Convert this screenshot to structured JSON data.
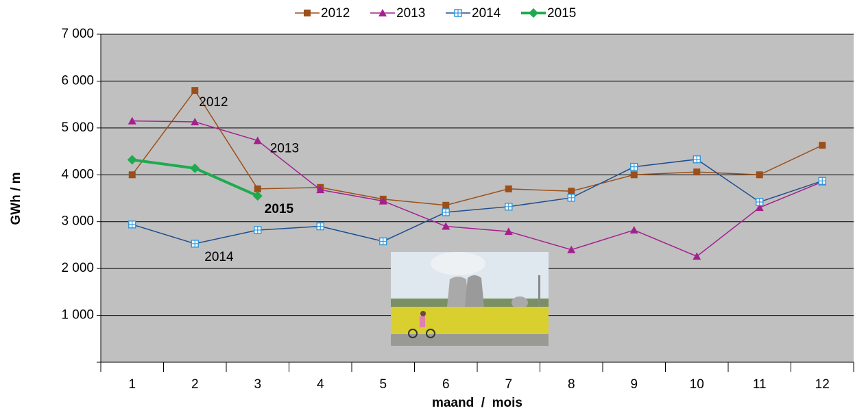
{
  "chart_data": {
    "type": "line",
    "x_label": "maand  /  mois",
    "y_label": "GWh / m",
    "categories": [
      "1",
      "2",
      "3",
      "4",
      "5",
      "6",
      "7",
      "8",
      "9",
      "10",
      "11",
      "12"
    ],
    "series": [
      {
        "name": "2012",
        "color": "#9c4f1a",
        "marker": "square",
        "values": [
          4000,
          5800,
          3700,
          3730,
          3480,
          3350,
          3700,
          3650,
          4000,
          4060,
          4000,
          4630
        ]
      },
      {
        "name": "2013",
        "color": "#a3208f",
        "marker": "triangle",
        "values": [
          5150,
          5130,
          4730,
          3680,
          3440,
          2900,
          2790,
          2400,
          2820,
          2260,
          3300,
          3850
        ]
      },
      {
        "name": "2014",
        "color": "#1f4e8c",
        "marker": "open-square",
        "values": [
          2940,
          2530,
          2820,
          2900,
          2580,
          3200,
          3320,
          3510,
          4170,
          4330,
          3420,
          3870
        ]
      },
      {
        "name": "2015",
        "color": "#1faa4f",
        "marker": "diamond",
        "values": [
          4320,
          4140,
          3550,
          null,
          null,
          null,
          null,
          null,
          null,
          null,
          null,
          null
        ]
      }
    ],
    "annotations": [
      "2012",
      "2013",
      "2014",
      "2015"
    ],
    "ylim": [
      0,
      7000
    ],
    "yticks": [
      {
        "value": 1000,
        "label": "1 000"
      },
      {
        "value": 2000,
        "label": "2 000"
      },
      {
        "value": 3000,
        "label": "3 000"
      },
      {
        "value": 4000,
        "label": "4 000"
      },
      {
        "value": 5000,
        "label": "5 000"
      },
      {
        "value": 6000,
        "label": "6 000"
      },
      {
        "value": 7000,
        "label": "7 000"
      }
    ],
    "grid": true,
    "legend": "top"
  }
}
